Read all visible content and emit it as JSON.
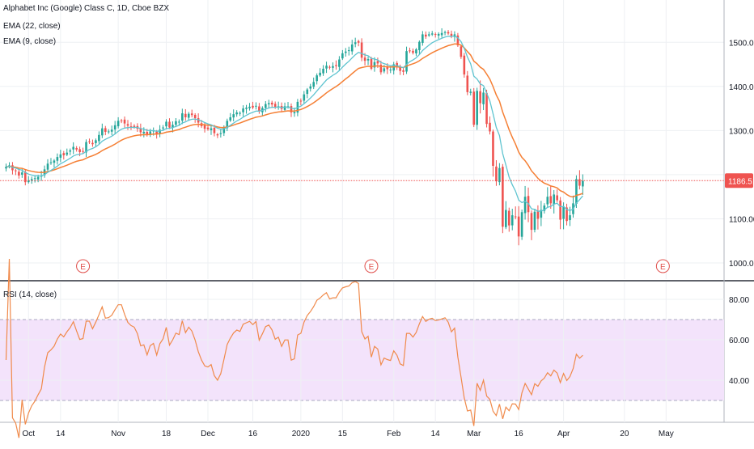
{
  "legend": {
    "symbol": "Alphabet Inc (Google) Class C, 1D, Cboe BZX",
    "ema22": "EMA (22, close)",
    "ema9": "EMA (9, close)",
    "rsi": "RSI (14, close)"
  },
  "colors": {
    "up": "#26a69a",
    "down": "#ef5350",
    "ema22": "#f57f34",
    "ema9": "#5fc4d0",
    "rsi_line": "#f08a4b",
    "rsi_band": "#f3e3fb",
    "grid": "#eef0f3",
    "last_price": "#ef5350",
    "earnings": "#e0504c"
  },
  "chart_data": [
    {
      "type": "candlestick",
      "title": "Alphabet Inc (Google) Class C, 1D, Cboe BZX",
      "y_ticks": [
        1000,
        1100,
        1200,
        1300,
        1400,
        1500
      ],
      "y_tick_labels": [
        "1000.00",
        "1100.00",
        "1200.00",
        "1300.00",
        "1400.00",
        "1500.00"
      ],
      "ylim": [
        975,
        1605
      ],
      "last_price": 1186.51,
      "last_price_label": "1186.51",
      "earnings_markers": [
        {
          "x": 24,
          "label": "E"
        },
        {
          "x": 114,
          "label": "E"
        },
        {
          "x": 205,
          "label": "E"
        }
      ],
      "x_ticks": [
        {
          "x": 7,
          "label": "Oct"
        },
        {
          "x": 17,
          "label": "14"
        },
        {
          "x": 35,
          "label": "Nov"
        },
        {
          "x": 50,
          "label": "18"
        },
        {
          "x": 63,
          "label": "Dec"
        },
        {
          "x": 77,
          "label": "16"
        },
        {
          "x": 92,
          "label": "2020"
        },
        {
          "x": 105,
          "label": "15"
        },
        {
          "x": 121,
          "label": "Feb"
        },
        {
          "x": 134,
          "label": "14"
        },
        {
          "x": 146,
          "label": "Mar"
        },
        {
          "x": 160,
          "label": "16"
        },
        {
          "x": 174,
          "label": "Apr"
        },
        {
          "x": 193,
          "label": "20"
        },
        {
          "x": 206,
          "label": "May"
        }
      ],
      "xlim": [
        0,
        226
      ],
      "close": [
        1218,
        1221,
        1210,
        1208,
        1198,
        1205,
        1183,
        1187,
        1190,
        1192,
        1195,
        1198,
        1212,
        1225,
        1228,
        1232,
        1240,
        1246,
        1244,
        1250,
        1255,
        1263,
        1257,
        1251,
        1252,
        1274,
        1274,
        1269,
        1278,
        1290,
        1305,
        1297,
        1298,
        1302,
        1312,
        1322,
        1322,
        1316,
        1311,
        1309,
        1308,
        1304,
        1296,
        1297,
        1290,
        1298,
        1300,
        1292,
        1302,
        1307,
        1320,
        1307,
        1313,
        1321,
        1320,
        1339,
        1330,
        1338,
        1335,
        1328,
        1318,
        1310,
        1304,
        1303,
        1305,
        1294,
        1289,
        1294,
        1306,
        1322,
        1330,
        1337,
        1341,
        1340,
        1350,
        1352,
        1354,
        1352,
        1356,
        1344,
        1351,
        1360,
        1362,
        1359,
        1353,
        1355,
        1349,
        1355,
        1355,
        1341,
        1342,
        1365,
        1367,
        1382,
        1393,
        1400,
        1410,
        1425,
        1431,
        1440,
        1447,
        1443,
        1446,
        1446,
        1461,
        1475,
        1479,
        1482,
        1495,
        1500,
        1499,
        1465,
        1458,
        1462,
        1440,
        1455,
        1452,
        1432,
        1441,
        1439,
        1438,
        1450,
        1445,
        1435,
        1433,
        1480,
        1480,
        1476,
        1484,
        1501,
        1518,
        1513,
        1518,
        1520,
        1518,
        1519,
        1521,
        1523,
        1520,
        1513,
        1518,
        1493,
        1467,
        1427,
        1387,
        1388,
        1313,
        1390,
        1362,
        1386,
        1315,
        1298,
        1220,
        1185,
        1215,
        1082,
        1120,
        1085,
        1108,
        1105,
        1060,
        1115,
        1150,
        1115,
        1075,
        1116,
        1100,
        1120,
        1130,
        1150,
        1135,
        1155,
        1142,
        1098,
        1128,
        1095,
        1108,
        1135,
        1190,
        1175,
        1186.51
      ]
    },
    {
      "type": "line",
      "title": "RSI (14, close)",
      "series_name": "RSI (14, close)",
      "y_ticks": [
        40,
        60,
        80
      ],
      "y_tick_labels": [
        "40.00",
        "60.00",
        "80.00"
      ],
      "ylim": [
        19,
        87
      ],
      "band": [
        30,
        70
      ]
    }
  ]
}
